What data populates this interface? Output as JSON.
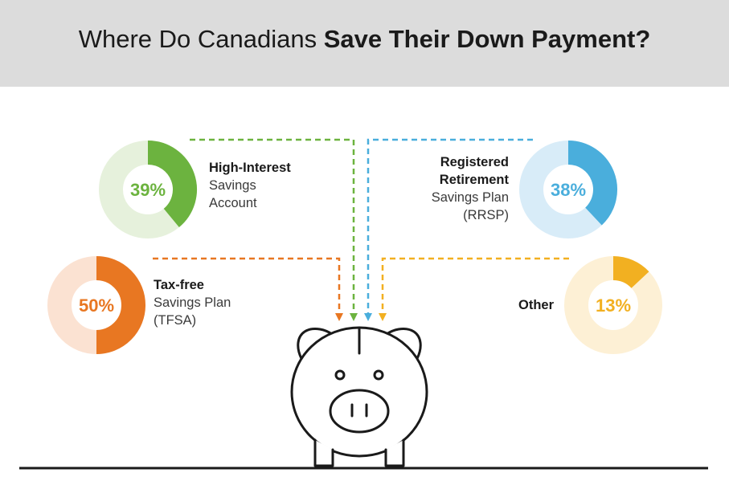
{
  "title": {
    "prefix": "Where Do Canadians ",
    "bold": "Save Their Down Payment?"
  },
  "colors": {
    "header_bg": "#dcdcdc",
    "green": "#6cb33f",
    "green_track": "#e6f1dc",
    "blue": "#4aaedc",
    "blue_track": "#d8ecf8",
    "orange": "#e87722",
    "orange_track": "#fbe2d2",
    "yellow": "#f2b021",
    "yellow_track": "#fdf0d5"
  },
  "chart_data": {
    "type": "pie",
    "title": "Where Do Canadians Save Their Down Payment?",
    "unit": "%",
    "slices": [
      {
        "key": "hisa",
        "value": 39,
        "value_label": "39%",
        "label_bold": "High-Interest",
        "label_rest": [
          "Savings",
          "Account"
        ],
        "color": "#6cb33f",
        "track": "#e6f1dc"
      },
      {
        "key": "rrsp",
        "value": 38,
        "value_label": "38%",
        "label_bold": "Registered Retirement",
        "label_bold_lines": [
          "Registered",
          "Retirement"
        ],
        "label_rest": [
          "Savings Plan",
          "(RRSP)"
        ],
        "color": "#4aaedc",
        "track": "#d8ecf8"
      },
      {
        "key": "tfsa",
        "value": 50,
        "value_label": "50%",
        "label_bold": "Tax-free",
        "label_rest": [
          "Savings Plan",
          "(TFSA)"
        ],
        "color": "#e87722",
        "track": "#fbe2d2"
      },
      {
        "key": "other",
        "value": 13,
        "value_label": "13%",
        "label_bold": "Other",
        "label_rest": [],
        "color": "#f2b021",
        "track": "#fdf0d5"
      }
    ]
  }
}
